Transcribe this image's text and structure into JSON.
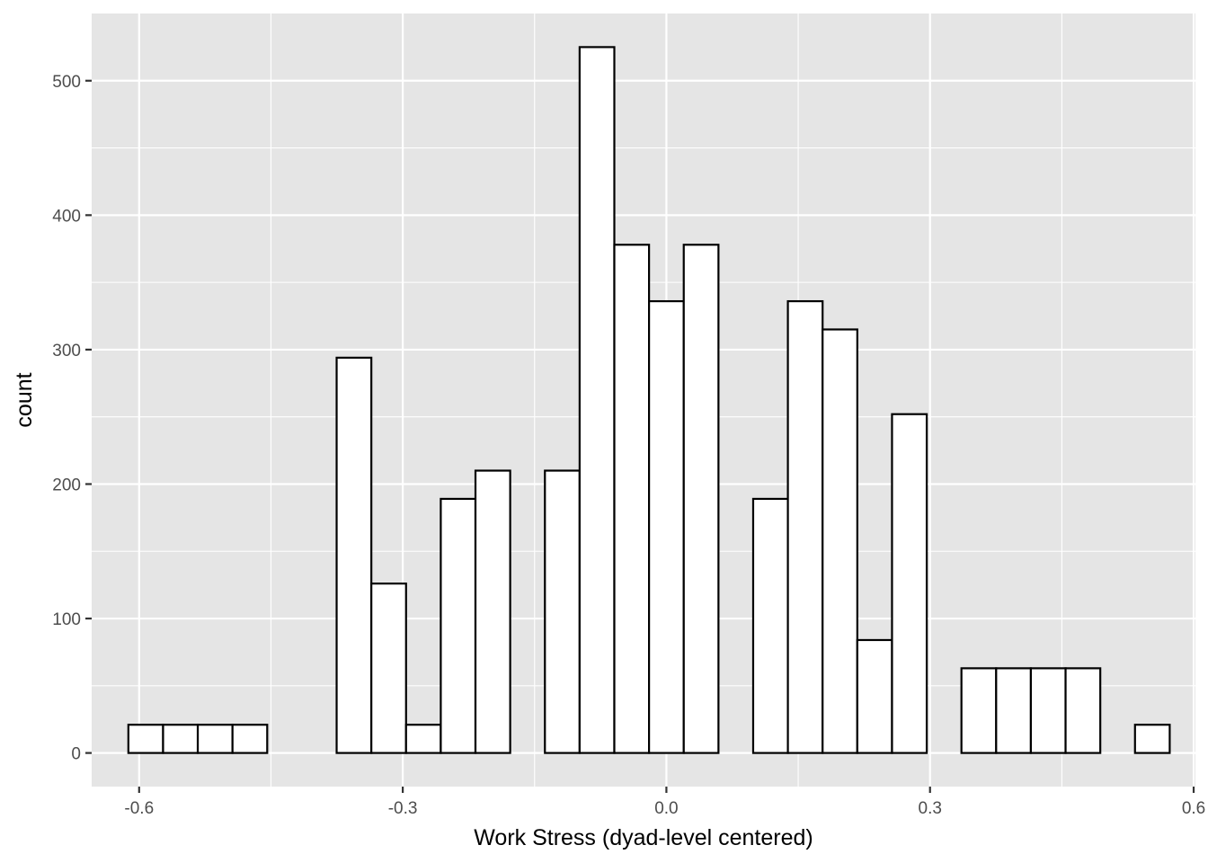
{
  "chart_data": {
    "type": "bar",
    "subtype": "histogram",
    "title": "",
    "xlabel": "Work Stress (dyad-level centered)",
    "ylabel": "count",
    "xlim": [
      -0.654,
      0.602
    ],
    "ylim": [
      -25,
      550
    ],
    "x_ticks": [
      -0.6,
      -0.3,
      0.0,
      0.3,
      0.6
    ],
    "x_tick_labels": [
      "-0.6",
      "-0.3",
      "0.0",
      "0.3",
      "0.6"
    ],
    "y_ticks": [
      0,
      100,
      200,
      300,
      400,
      500
    ],
    "y_tick_labels": [
      "0",
      "100",
      "200",
      "300",
      "400",
      "500"
    ],
    "bin_width": 0.0395,
    "bin_centers": [
      -0.5925,
      -0.553,
      -0.5135,
      -0.474,
      -0.4345,
      -0.395,
      -0.3555,
      -0.316,
      -0.2765,
      -0.237,
      -0.1975,
      -0.158,
      -0.1185,
      -0.079,
      -0.0395,
      0.0,
      0.0395,
      0.079,
      0.1185,
      0.158,
      0.1975,
      0.237,
      0.2765,
      0.316,
      0.3555,
      0.395,
      0.4345,
      0.474,
      0.5135,
      0.553
    ],
    "values": [
      21,
      21,
      21,
      21,
      0,
      0,
      294,
      126,
      21,
      189,
      210,
      0,
      210,
      525,
      378,
      336,
      378,
      0,
      189,
      336,
      315,
      84,
      252,
      0,
      63,
      63,
      63,
      63,
      0,
      21
    ],
    "grid": true,
    "colors": {
      "panel_background": "#e5e5e5",
      "grid_line": "#ffffff",
      "bar_fill": "#ffffff",
      "bar_outline": "#000000",
      "tick_label": "#4d4d4d",
      "axis_title": "#000000"
    }
  }
}
